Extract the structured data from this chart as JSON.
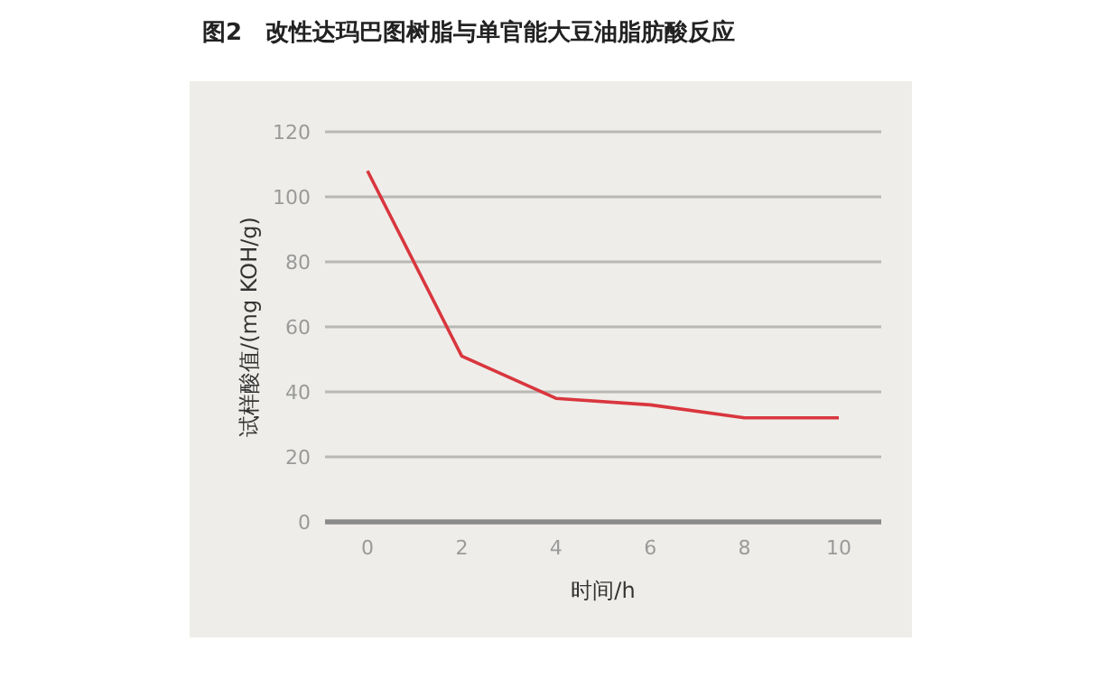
{
  "chart_data": {
    "type": "line",
    "title": "图2　改性达玛巴图树脂与单官能大豆油脂肪酸反应",
    "xlabel": "时间/h",
    "ylabel": "试样酸值/(mg KOH/g)",
    "x": [
      0,
      2,
      4,
      6,
      8,
      10
    ],
    "series": [
      {
        "color": "#d9363e",
        "values": [
          108,
          51,
          38,
          36,
          32,
          32
        ]
      }
    ],
    "xlim": [
      -0.9,
      10.9
    ],
    "ylim": [
      0,
      120
    ],
    "xticks": [
      0,
      2,
      4,
      6,
      8,
      10
    ],
    "yticks": [
      0,
      20,
      40,
      60,
      80,
      100,
      120
    ],
    "grid": "y",
    "marker": "none",
    "line_style": "solid"
  }
}
